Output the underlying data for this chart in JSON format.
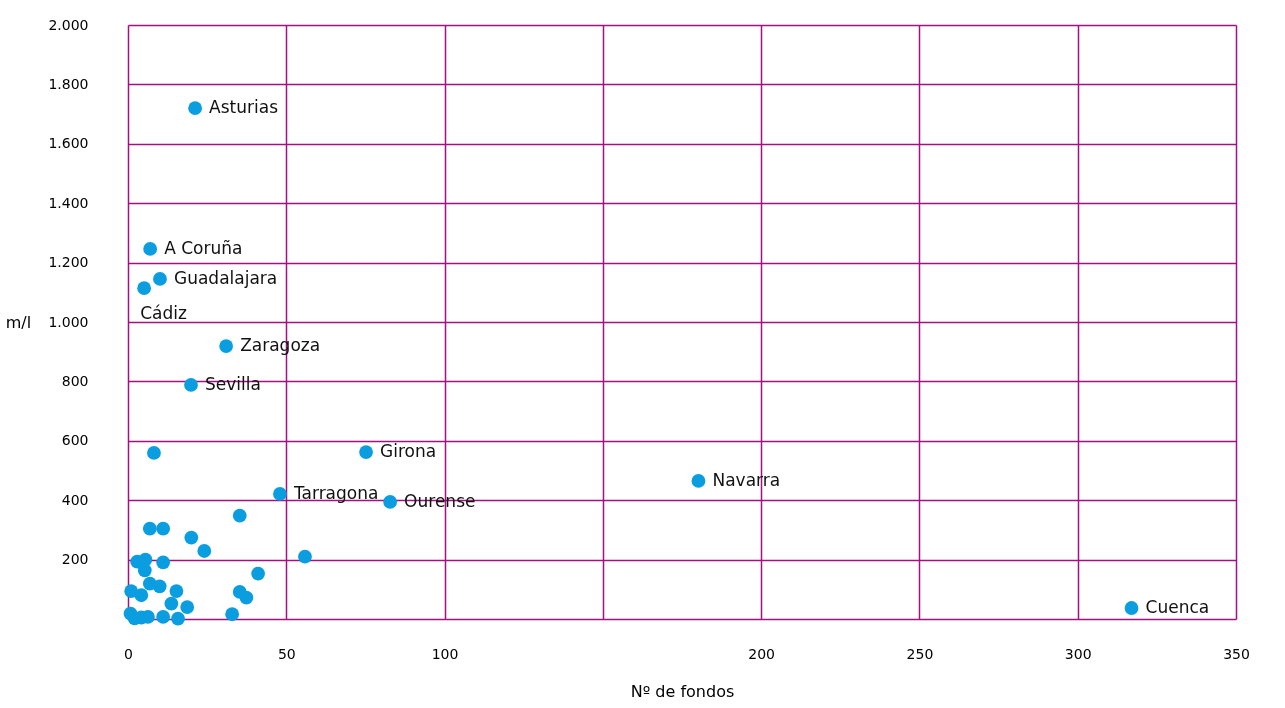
{
  "chart_data": {
    "type": "scatter",
    "xlabel": "Nº de fondos",
    "ylabel": "m/l",
    "x": [
      21.2,
      7,
      10.1,
      5.1,
      31,
      19.9,
      75.2,
      48,
      82.8,
      180.2,
      317,
      8.2,
      35.3,
      6.9,
      11.1,
      20,
      24.1,
      55.9,
      2.9,
      5.5,
      11.1,
      5.3,
      41.1,
      10,
      6.9,
      1,
      4.2,
      15.3,
      35.3,
      37.4,
      13.7,
      18.7,
      0.8,
      2.1,
      4.2,
      6.3,
      11.1,
      15.8,
      32.9
    ],
    "values": [
      1720,
      1246,
      1145,
      1114,
      919,
      788,
      562,
      421,
      394,
      465,
      37,
      559,
      348,
      304,
      304,
      274,
      229,
      210,
      193,
      200,
      191,
      164,
      153,
      110,
      119,
      94,
      80,
      94,
      91,
      72,
      52,
      40,
      18,
      2,
      5,
      7,
      7,
      1,
      16
    ],
    "color": "#0a9ee0",
    "marker": "circle",
    "grid": true,
    "xlim": [
      0,
      350
    ],
    "xticks": [
      0,
      50,
      100,
      {
        "value": 150,
        "label": null
      },
      200,
      250,
      300,
      350
    ],
    "ylim": [
      0,
      2000
    ],
    "yticks": [
      {
        "value": 0,
        "label": null
      },
      200,
      400,
      600,
      800,
      {
        "value": 1000,
        "label": "1.000"
      },
      {
        "value": 1200,
        "label": "1.200"
      },
      {
        "value": 1400,
        "label": "1.400"
      },
      {
        "value": 1600,
        "label": "1.600"
      },
      {
        "value": 1800,
        "label": "1.800"
      },
      {
        "value": 2000,
        "label": "2.000"
      }
    ],
    "annotations": [
      {
        "text": "Asturias",
        "x": 21.2,
        "y": 1720
      },
      {
        "text": "A Coruña",
        "x": 7,
        "y": 1246
      },
      {
        "text": "Guadalajara",
        "x": 10.1,
        "y": 1145
      },
      {
        "text": "Cádiz",
        "x": 5.1,
        "y": 1114
      },
      {
        "text": "Zaragoza",
        "x": 31,
        "y": 919
      },
      {
        "text": "Sevilla",
        "x": 19.9,
        "y": 788
      },
      {
        "text": "Girona",
        "x": 75.2,
        "y": 562
      },
      {
        "text": "Tarragona",
        "x": 48,
        "y": 421
      },
      {
        "text": "Ourense",
        "x": 82.8,
        "y": 394
      },
      {
        "text": "Navarra",
        "x": 180.2,
        "y": 465
      },
      {
        "text": "Cuenca",
        "x": 317,
        "y": 37
      }
    ]
  }
}
